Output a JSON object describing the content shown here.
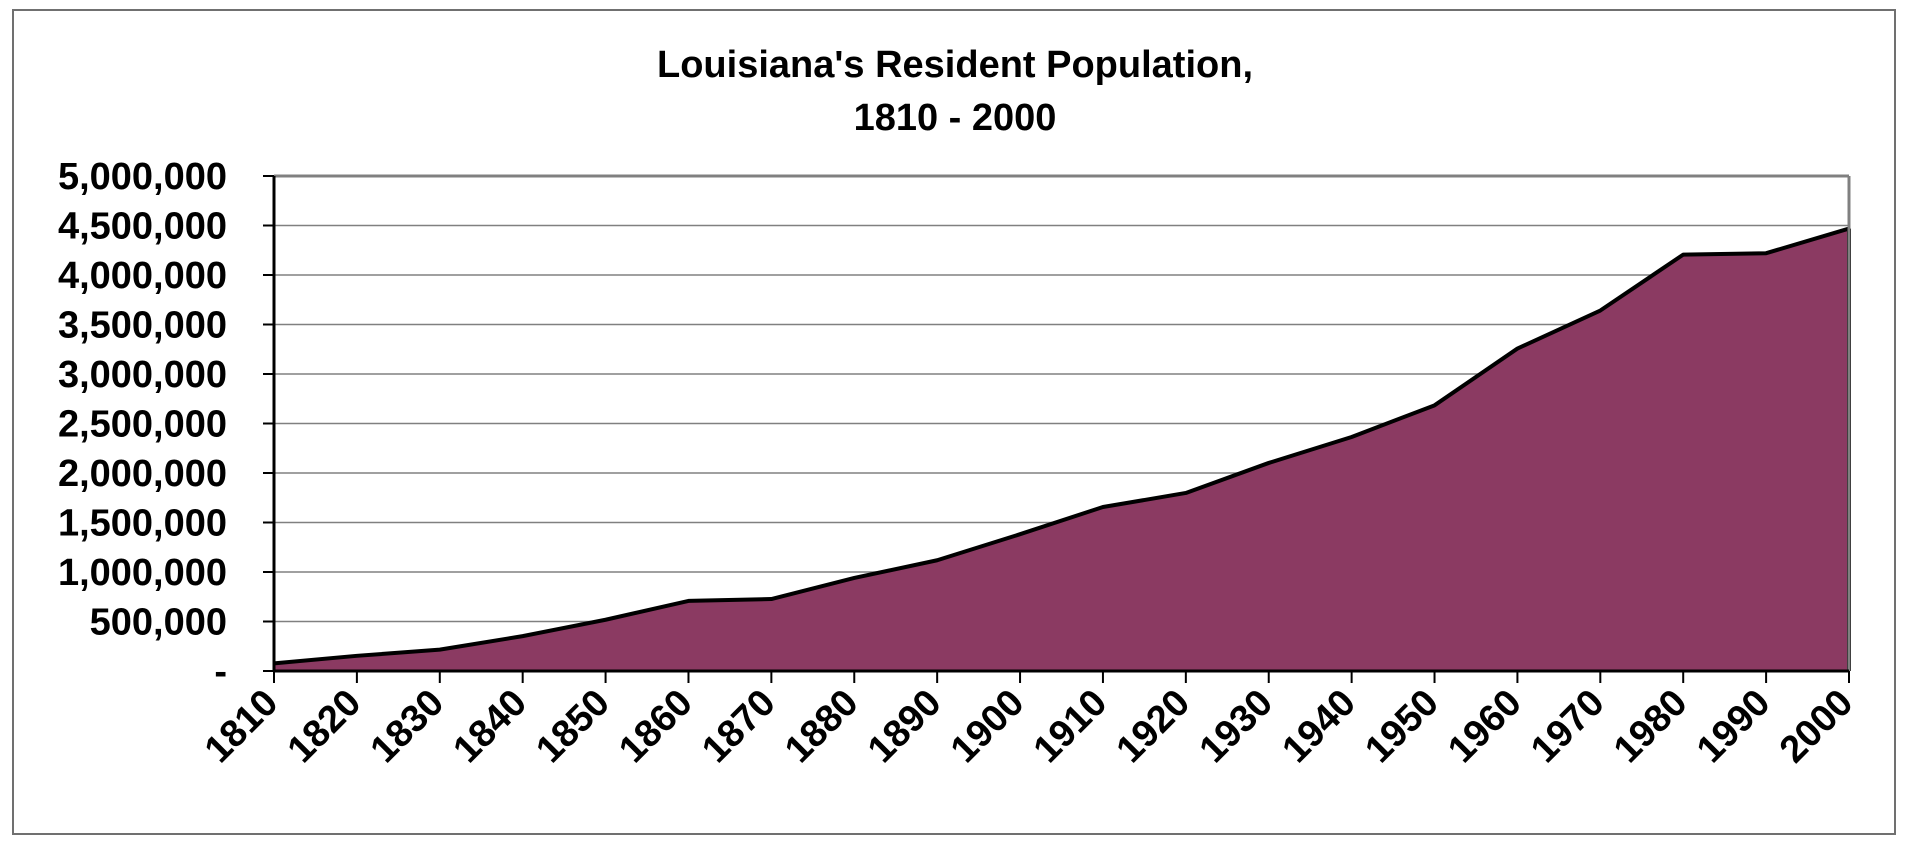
{
  "chart_data": {
    "type": "area",
    "title": "Louisiana's Resident Population,",
    "subtitle": "1810 - 2000",
    "xlabel": "",
    "ylabel": "",
    "x": [
      "1810",
      "1820",
      "1830",
      "1840",
      "1850",
      "1860",
      "1870",
      "1880",
      "1890",
      "1900",
      "1910",
      "1920",
      "1930",
      "1940",
      "1950",
      "1960",
      "1970",
      "1980",
      "1990",
      "2000"
    ],
    "values": [
      76556,
      153407,
      215739,
      352411,
      517762,
      708002,
      726915,
      939946,
      1118588,
      1381625,
      1656388,
      1798509,
      2101593,
      2363880,
      2683516,
      3257022,
      3641306,
      4205900,
      4219973,
      4468976
    ],
    "ylim": [
      0,
      5000000
    ],
    "yticks": [
      0,
      500000,
      1000000,
      1500000,
      2000000,
      2500000,
      3000000,
      3500000,
      4000000,
      4500000,
      5000000
    ],
    "ytick_labels": [
      "-",
      "500,000",
      "1,000,000",
      "1,500,000",
      "2,000,000",
      "2,500,000",
      "3,000,000",
      "3,500,000",
      "4,000,000",
      "4,500,000",
      "5,000,000"
    ],
    "grid": true,
    "legend": "none",
    "fill_color": "#8B3A62",
    "line_color": "#000000",
    "grid_color": "#808080"
  }
}
